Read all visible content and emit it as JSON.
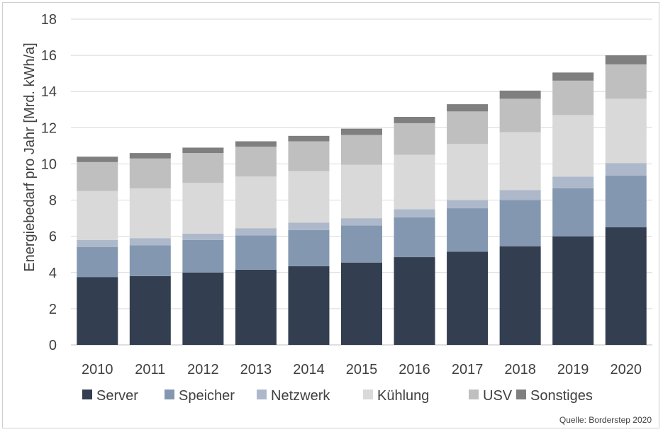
{
  "chart_data": {
    "type": "bar",
    "stacked": true,
    "title": "",
    "xlabel": "",
    "ylabel": "Energiebedarf pro Jahr [Mrd. kWh/a]",
    "ylim": [
      0,
      18
    ],
    "yticks": [
      0,
      2,
      4,
      6,
      8,
      10,
      12,
      14,
      16,
      18
    ],
    "grid": true,
    "legend_position": "bottom",
    "categories": [
      "2010",
      "2011",
      "2012",
      "2013",
      "2014",
      "2015",
      "2016",
      "2017",
      "2018",
      "2019",
      "2020"
    ],
    "series": [
      {
        "name": "Server",
        "color": "#333f50",
        "values": [
          3.75,
          3.8,
          4.0,
          4.15,
          4.35,
          4.55,
          4.85,
          5.15,
          5.45,
          6.0,
          6.5
        ]
      },
      {
        "name": "Speicher",
        "color": "#8497b0",
        "values": [
          1.65,
          1.7,
          1.8,
          1.9,
          2.0,
          2.05,
          2.2,
          2.4,
          2.55,
          2.65,
          2.85
        ]
      },
      {
        "name": "Netzwerk",
        "color": "#adb9ca",
        "values": [
          0.4,
          0.4,
          0.35,
          0.4,
          0.4,
          0.4,
          0.45,
          0.45,
          0.55,
          0.65,
          0.7
        ]
      },
      {
        "name": "Kühlung",
        "color": "#d9d9d9",
        "values": [
          2.7,
          2.75,
          2.8,
          2.85,
          2.85,
          2.95,
          3.0,
          3.1,
          3.2,
          3.4,
          3.55
        ]
      },
      {
        "name": "USV",
        "color": "#bfbfbf",
        "values": [
          1.6,
          1.65,
          1.65,
          1.65,
          1.65,
          1.65,
          1.75,
          1.8,
          1.85,
          1.9,
          1.9
        ]
      },
      {
        "name": "Sonstiges",
        "color": "#7f7f7f",
        "values": [
          0.3,
          0.3,
          0.3,
          0.3,
          0.3,
          0.35,
          0.35,
          0.4,
          0.45,
          0.45,
          0.5
        ]
      }
    ]
  },
  "source_note": "Quelle: Borderstep 2020"
}
